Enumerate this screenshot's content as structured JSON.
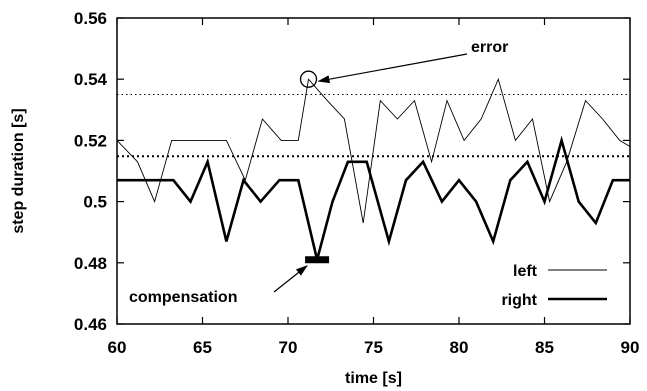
{
  "chart_data": {
    "type": "line",
    "xlabel": "time [s]",
    "ylabel": "step duration [s]",
    "xlim": [
      60,
      90
    ],
    "ylim": [
      0.46,
      0.56
    ],
    "xticks": [
      60,
      65,
      70,
      75,
      80,
      85,
      90
    ],
    "xtick_labels": [
      "60",
      "65",
      "70",
      "75",
      "80",
      "85",
      "90"
    ],
    "yticks": [
      0.46,
      0.48,
      0.5,
      0.52,
      0.54,
      0.56
    ],
    "ytick_labels": [
      "0.46",
      "0.48",
      "0.5",
      "0.52",
      "0.54",
      "0.56"
    ],
    "grid": false,
    "legend_position": "bottom-right",
    "series": [
      {
        "name": "left",
        "style": "thin",
        "x": [
          60,
          61.2,
          62.2,
          63.2,
          64.3,
          65.3,
          66.4,
          67.5,
          68.5,
          69.6,
          70.6,
          71.2,
          72.3,
          73.3,
          74.4,
          75.4,
          76.4,
          77.4,
          78.4,
          79.3,
          80.3,
          81.3,
          82.3,
          83.3,
          84.3,
          85.3,
          86.3,
          87.4,
          88.4,
          89.4,
          90
        ],
        "y": [
          0.52,
          0.513,
          0.5,
          0.52,
          0.52,
          0.52,
          0.52,
          0.507,
          0.527,
          0.52,
          0.52,
          0.54,
          0.533,
          0.527,
          0.493,
          0.533,
          0.527,
          0.533,
          0.513,
          0.533,
          0.52,
          0.527,
          0.54,
          0.52,
          0.527,
          0.5,
          0.513,
          0.533,
          0.527,
          0.52,
          0.518
        ]
      },
      {
        "name": "right",
        "style": "thick",
        "x": [
          60,
          61.2,
          62.2,
          63.3,
          64.3,
          65.3,
          66.4,
          67.4,
          68.4,
          69.5,
          70.6,
          71.7,
          72.6,
          73.5,
          74.6,
          75.9,
          76.9,
          77.9,
          79,
          80,
          81,
          82,
          83,
          84,
          85,
          86,
          87,
          88,
          89,
          90
        ],
        "y": [
          0.507,
          0.507,
          0.507,
          0.507,
          0.5,
          0.513,
          0.487,
          0.507,
          0.5,
          0.507,
          0.507,
          0.481,
          0.5,
          0.513,
          0.513,
          0.487,
          0.507,
          0.513,
          0.5,
          0.507,
          0.5,
          0.487,
          0.507,
          0.513,
          0.5,
          0.52,
          0.5,
          0.493,
          0.507,
          0.507
        ]
      }
    ],
    "reference_lines": [
      {
        "y": 0.535,
        "style": "dotted-thin"
      },
      {
        "y": 0.5148,
        "style": "dotted-thick"
      }
    ],
    "annotations": [
      {
        "text": "error",
        "target": [
          71.2,
          0.54
        ],
        "marker": "circle"
      },
      {
        "text": "compensation",
        "target": [
          71.7,
          0.481
        ],
        "marker": "bar"
      }
    ]
  }
}
